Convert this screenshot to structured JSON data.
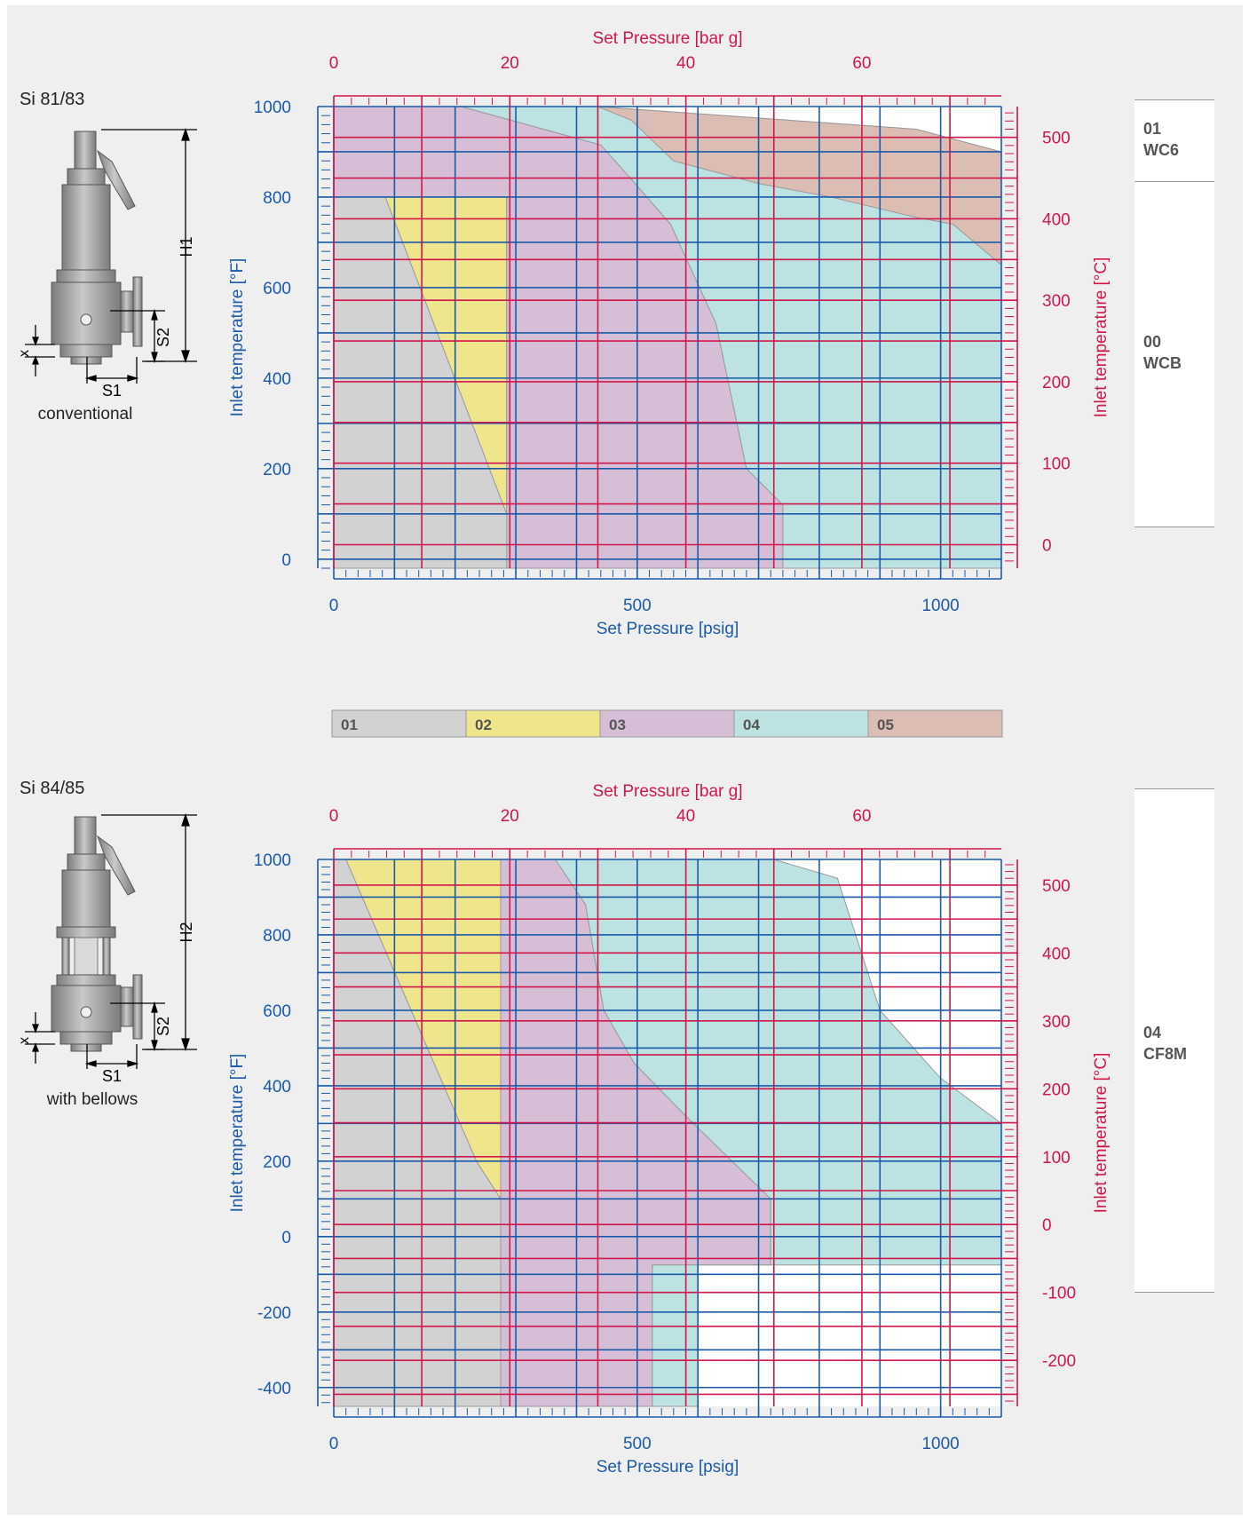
{
  "diagrams": [
    {
      "model": "Si 81/83",
      "caption": "conventional",
      "height_label": "H1",
      "dims": {
        "x": "x",
        "s1": "S1",
        "s2": "S2"
      }
    },
    {
      "model": "Si 84/85",
      "caption": "with bellows",
      "height_label": "H2",
      "dims": {
        "x": "x",
        "s1": "S1",
        "s2": "S2"
      }
    }
  ],
  "materials": [
    [
      {
        "code": "01",
        "name": "WC6"
      },
      {
        "code": "00",
        "name": "WCB"
      }
    ],
    [
      {
        "code": "04",
        "name": "CF8M"
      }
    ]
  ],
  "legend": [
    {
      "code": "01",
      "color": "#d2d2d2"
    },
    {
      "code": "02",
      "color": "#efe58c"
    },
    {
      "code": "03",
      "color": "#d6bfd6"
    },
    {
      "code": "04",
      "color": "#bde2e2"
    },
    {
      "code": "05",
      "color": "#dbbdb4"
    }
  ],
  "chart_data": [
    {
      "type": "area",
      "x_bottom": {
        "label": "Set Pressure [psig]",
        "range": [
          0,
          1100
        ],
        "ticks": [
          0,
          500,
          1000
        ]
      },
      "x_top": {
        "label": "Set Pressure [bar g]",
        "range": [
          0,
          75.84
        ],
        "ticks": [
          0,
          20,
          40,
          60
        ]
      },
      "y_left": {
        "label": "Inlet temperature [°F]",
        "range": [
          -20,
          1000
        ],
        "ticks": [
          0,
          200,
          400,
          600,
          800,
          1000
        ]
      },
      "y_right": {
        "label": "Inlet temperature [°C]",
        "range": [
          -28.9,
          537.8
        ],
        "ticks": [
          0,
          100,
          200,
          300,
          400,
          500
        ]
      },
      "regions": [
        {
          "zone": "01",
          "points": [
            [
              0,
              -20
            ],
            [
              0,
              800
            ],
            [
              85,
              800
            ],
            [
              285,
              100
            ],
            [
              288,
              -20
            ]
          ]
        },
        {
          "zone": "02",
          "points": [
            [
              85,
              800
            ],
            [
              285,
              800
            ],
            [
              285,
              100
            ]
          ]
        },
        {
          "zone": "03",
          "points": [
            [
              285,
              -20
            ],
            [
              285,
              800
            ],
            [
              0,
              800
            ],
            [
              0,
              1000
            ],
            [
              210,
              1000
            ],
            [
              440,
              915
            ],
            [
              490,
              840
            ],
            [
              555,
              740
            ],
            [
              630,
              520
            ],
            [
              680,
              200
            ],
            [
              740,
              120
            ],
            [
              740,
              -20
            ]
          ]
        },
        {
          "zone": "04",
          "points": [
            [
              740,
              -20
            ],
            [
              740,
              120
            ],
            [
              680,
              200
            ],
            [
              630,
              520
            ],
            [
              555,
              740
            ],
            [
              490,
              840
            ],
            [
              440,
              915
            ],
            [
              210,
              1000
            ],
            [
              1100,
              1000
            ],
            [
              1100,
              -20
            ]
          ]
        },
        {
          "zone": "05",
          "points": [
            [
              435,
              1000
            ],
            [
              960,
              950
            ],
            [
              1100,
              900
            ],
            [
              1100,
              650
            ],
            [
              1020,
              740
            ],
            [
              960,
              755
            ],
            [
              820,
              800
            ],
            [
              700,
              830
            ],
            [
              560,
              880
            ],
            [
              490,
              970
            ]
          ]
        }
      ],
      "blank_regions": [
        {
          "points": [
            [
              435,
              1000
            ],
            [
              1100,
              1000
            ],
            [
              1100,
              900
            ],
            [
              960,
              950
            ]
          ]
        }
      ]
    },
    {
      "type": "area",
      "x_bottom": {
        "label": "Set Pressure [psig]",
        "range": [
          0,
          1100
        ],
        "ticks": [
          0,
          500,
          1000
        ]
      },
      "x_top": {
        "label": "Set Pressure [bar g]",
        "range": [
          0,
          75.84
        ],
        "ticks": [
          0,
          20,
          40,
          60
        ]
      },
      "y_left": {
        "label": "Inlet temperature [°F]",
        "range": [
          -450,
          1000
        ],
        "ticks": [
          -400,
          -200,
          0,
          200,
          400,
          600,
          800,
          1000
        ]
      },
      "y_right": {
        "label": "Inlet temperature [°C]",
        "range": [
          -267.8,
          537.8
        ],
        "ticks": [
          -200,
          -100,
          0,
          100,
          200,
          300,
          400,
          500
        ]
      },
      "regions": [
        {
          "zone": "01",
          "points": [
            [
              0,
              -450
            ],
            [
              0,
              1000
            ],
            [
              20,
              1000
            ],
            [
              235,
              200
            ],
            [
              275,
              100
            ],
            [
              275,
              -450
            ]
          ]
        },
        {
          "zone": "02",
          "points": [
            [
              20,
              1000
            ],
            [
              275,
              1000
            ],
            [
              275,
              100
            ],
            [
              235,
              200
            ]
          ]
        },
        {
          "zone": "03",
          "points": [
            [
              275,
              -450
            ],
            [
              275,
              1000
            ],
            [
              365,
              1000
            ],
            [
              415,
              880
            ],
            [
              445,
              600
            ],
            [
              495,
              460
            ],
            [
              580,
              320
            ],
            [
              720,
              100
            ],
            [
              720,
              -75
            ],
            [
              525,
              -75
            ],
            [
              525,
              -450
            ]
          ]
        },
        {
          "zone": "04",
          "points": [
            [
              525,
              -450
            ],
            [
              525,
              -75
            ],
            [
              720,
              -75
            ],
            [
              720,
              100
            ],
            [
              580,
              320
            ],
            [
              495,
              460
            ],
            [
              445,
              600
            ],
            [
              415,
              880
            ],
            [
              365,
              1000
            ],
            [
              725,
              1000
            ],
            [
              830,
              950
            ],
            [
              900,
              600
            ],
            [
              1000,
              420
            ],
            [
              1100,
              300
            ],
            [
              1100,
              -75
            ],
            [
              600,
              -75
            ],
            [
              600,
              -450
            ]
          ]
        }
      ]
    }
  ]
}
